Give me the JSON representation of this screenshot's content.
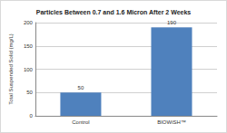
{
  "chart_data": {
    "type": "bar",
    "title": "Particles Between 0.7 and 1.6 Micron After 2 Weeks",
    "y_label": "Total Suspended Solid (mg/L)",
    "categories": [
      "Control",
      "BIOWiSH™"
    ],
    "values": [
      50,
      190
    ],
    "color": "#4f81bd",
    "ylim": [
      0,
      200
    ],
    "yticks": [
      0,
      50,
      100,
      150,
      200
    ],
    "grid": true,
    "data_labels": true
  }
}
